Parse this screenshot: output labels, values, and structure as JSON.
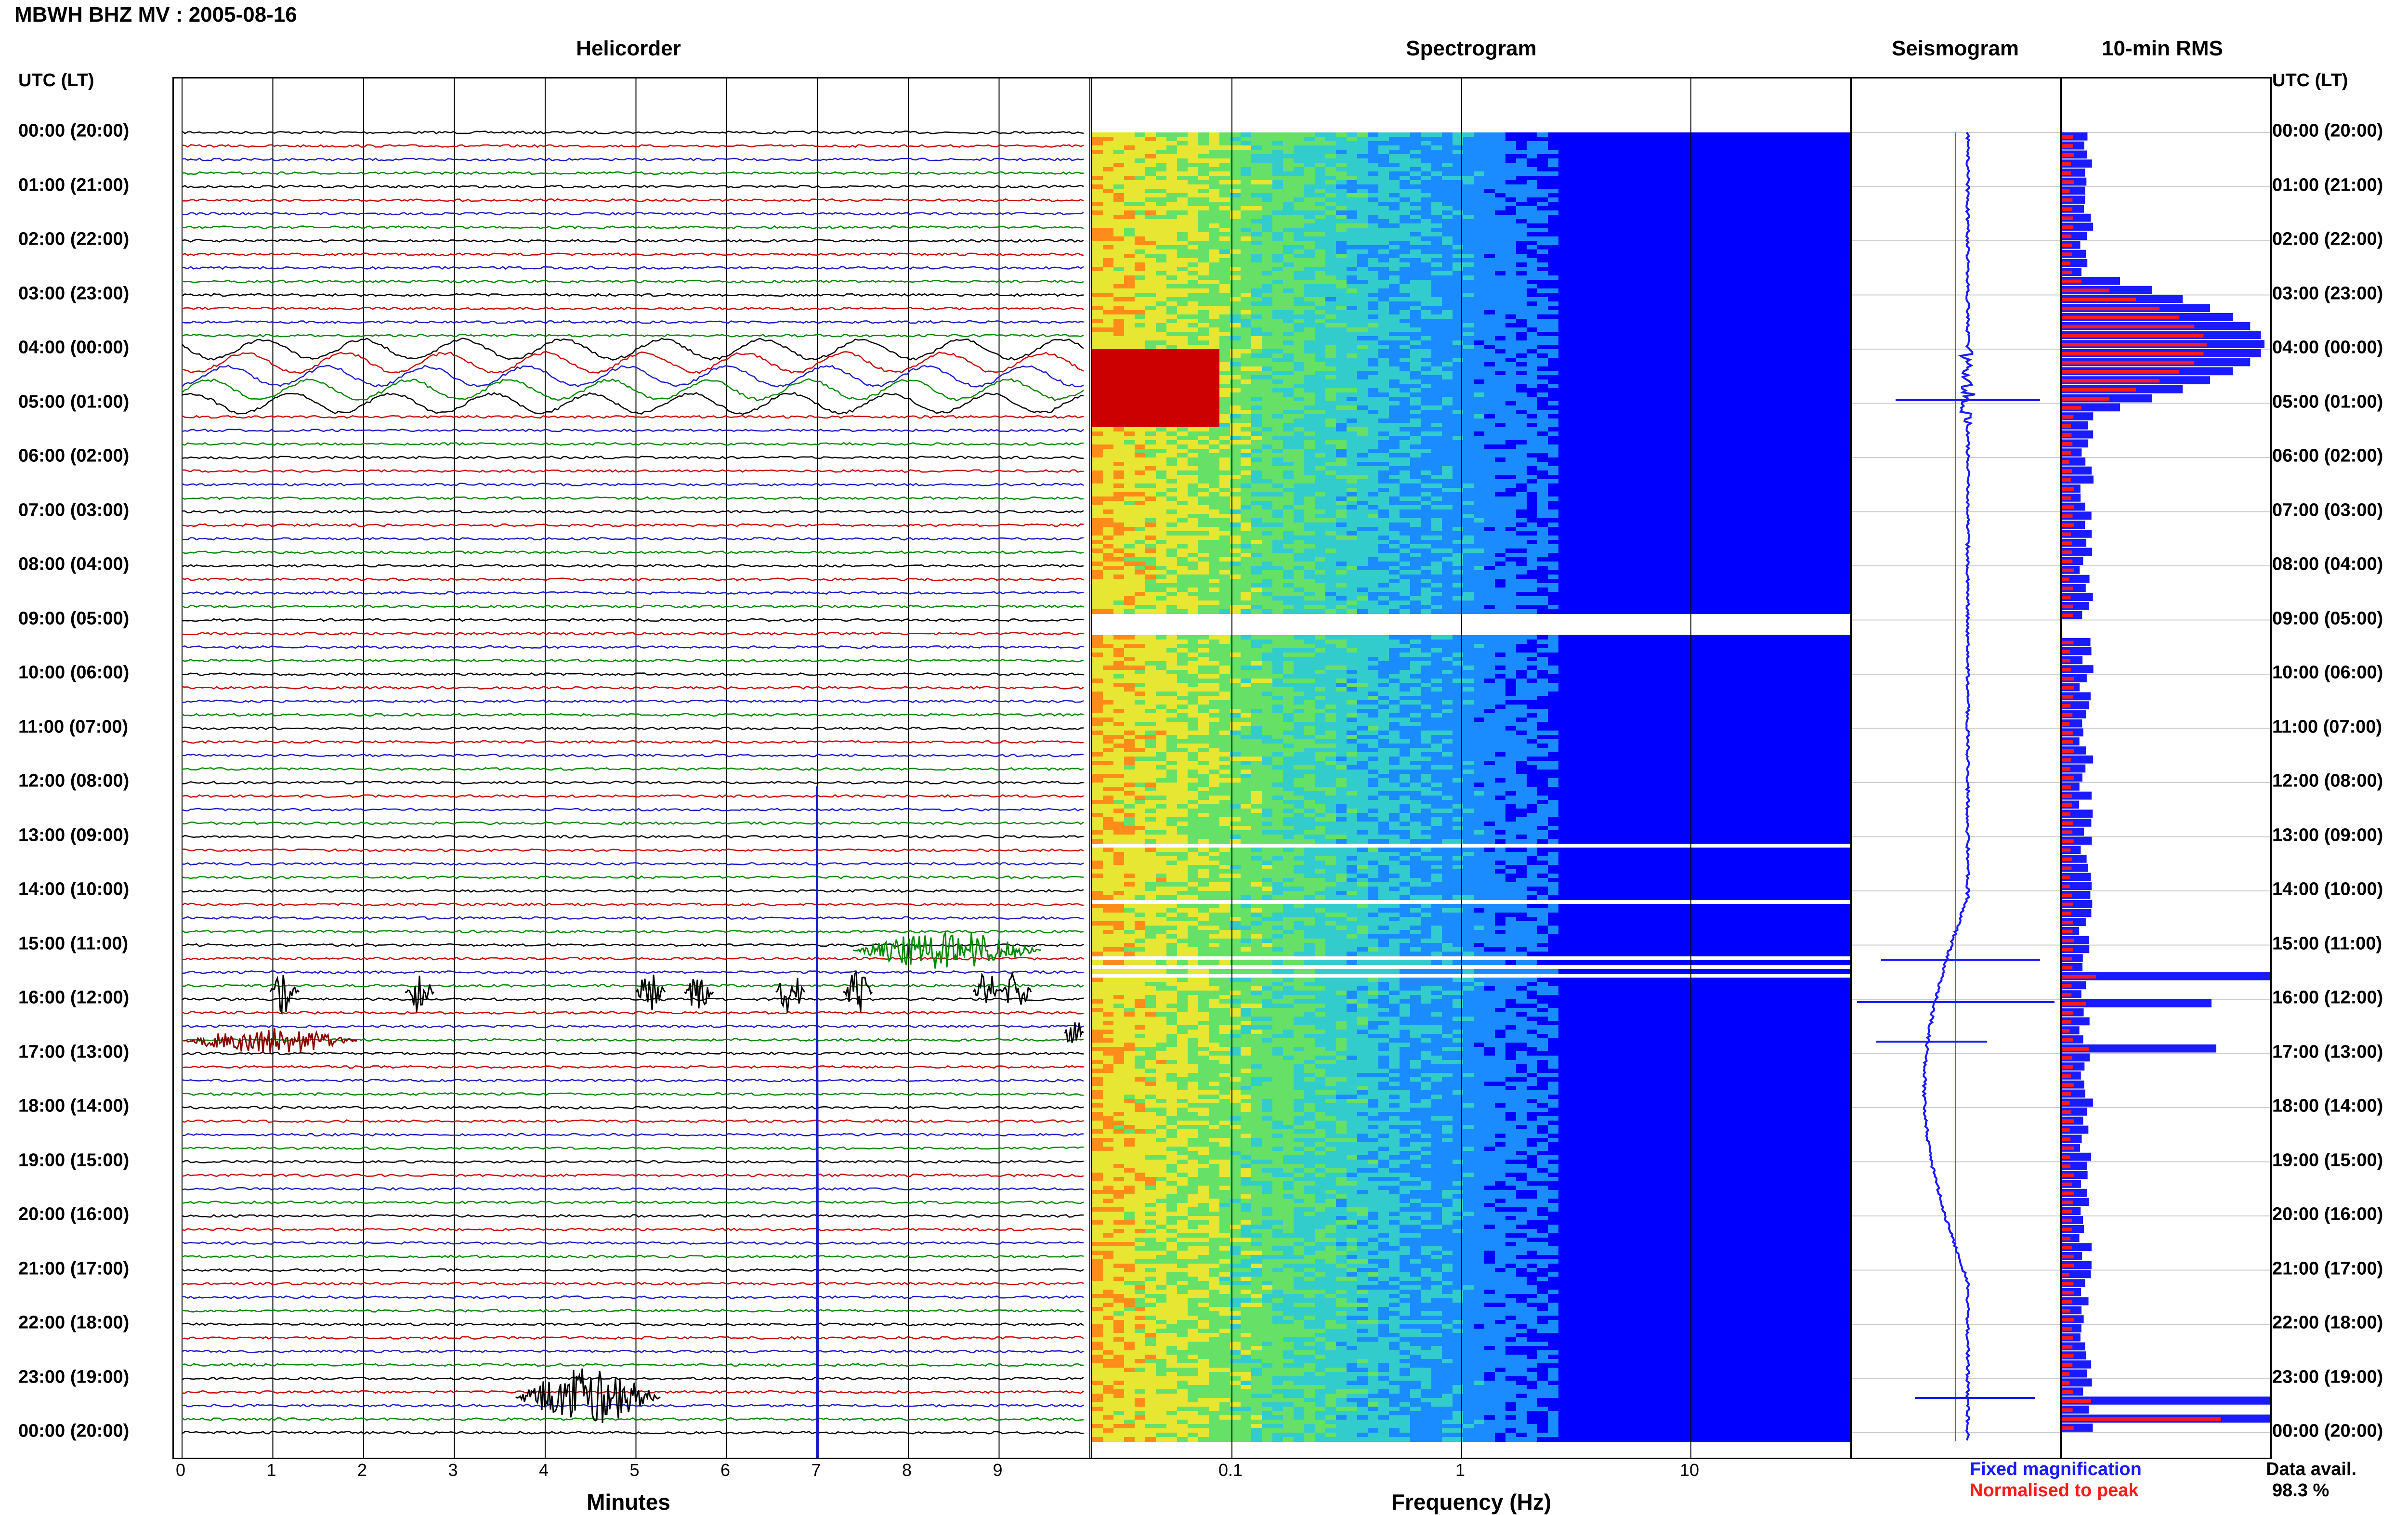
{
  "header": {
    "title": "MBWH BHZ MV : 2005-08-16",
    "utc_heading_left": "UTC (LT)",
    "utc_heading_right": "UTC (LT)"
  },
  "panels": {
    "helicorder": "Helicorder",
    "spectrogram": "Spectrogram",
    "seismogram": "Seismogram",
    "rms": "10-min RMS"
  },
  "time_labels": [
    "00:00 (20:00)",
    "01:00 (21:00)",
    "02:00 (22:00)",
    "03:00 (23:00)",
    "04:00 (00:00)",
    "05:00 (01:00)",
    "06:00 (02:00)",
    "07:00 (03:00)",
    "08:00 (04:00)",
    "09:00 (05:00)",
    "10:00 (06:00)",
    "11:00 (07:00)",
    "12:00 (08:00)",
    "13:00 (09:00)",
    "14:00 (10:00)",
    "15:00 (11:00)",
    "16:00 (12:00)",
    "17:00 (13:00)",
    "18:00 (14:00)",
    "19:00 (15:00)",
    "20:00 (16:00)",
    "21:00 (17:00)",
    "22:00 (18:00)",
    "23:00 (19:00)",
    "00:00 (20:00)"
  ],
  "helicorder_axis": {
    "ticks": [
      "0",
      "1",
      "2",
      "3",
      "4",
      "5",
      "6",
      "7",
      "8",
      "9"
    ],
    "label": "Minutes"
  },
  "spectrogram_axis": {
    "ticks": [
      "0.1",
      "1",
      "10"
    ],
    "label": "Frequency (Hz)"
  },
  "legend": {
    "fixed": "Fixed magnification",
    "normalised": "Normalised to peak",
    "fixed_color": "#1a1aff",
    "normalised_color": "#ff1a1a"
  },
  "data_availability": {
    "label": "Data avail.",
    "value": "98.3 %"
  },
  "colors": {
    "trace_black": "#000000",
    "trace_red": "#cc0000",
    "trace_blue": "#1a1acc",
    "trace_green": "#008800",
    "rms_blue": "#1a1aff",
    "rms_red": "#ff1a1a"
  }
}
